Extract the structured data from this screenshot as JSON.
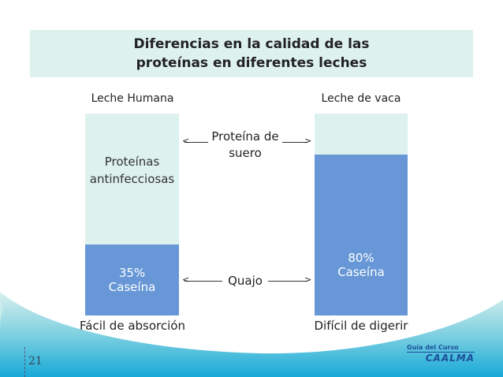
{
  "title_line1": "Diferencias en la calidad de las",
  "title_line2": "proteínas en diferentes leches",
  "left": {
    "header": "Leche Humana",
    "whey_label_1": "Proteínas",
    "whey_label_2": "antinfecciosas",
    "casein_percent": "35%",
    "casein_label": "Caseína",
    "casein_fraction": 0.35,
    "footer": "Fácil de absorción"
  },
  "right": {
    "header": "Leche de vaca",
    "casein_percent": "80%",
    "casein_label": "Caseína",
    "casein_fraction": 0.8,
    "footer": "Difícil de digerir"
  },
  "middle": {
    "whey_1": "Proteína de",
    "whey_2": "suero",
    "curd": "Quajo"
  },
  "colors": {
    "whey": "#ddf1ee",
    "casein": "#6797d6"
  },
  "page_number": "21",
  "logo": {
    "line1": "Guía del Curso",
    "line2": "CAALMA"
  }
}
